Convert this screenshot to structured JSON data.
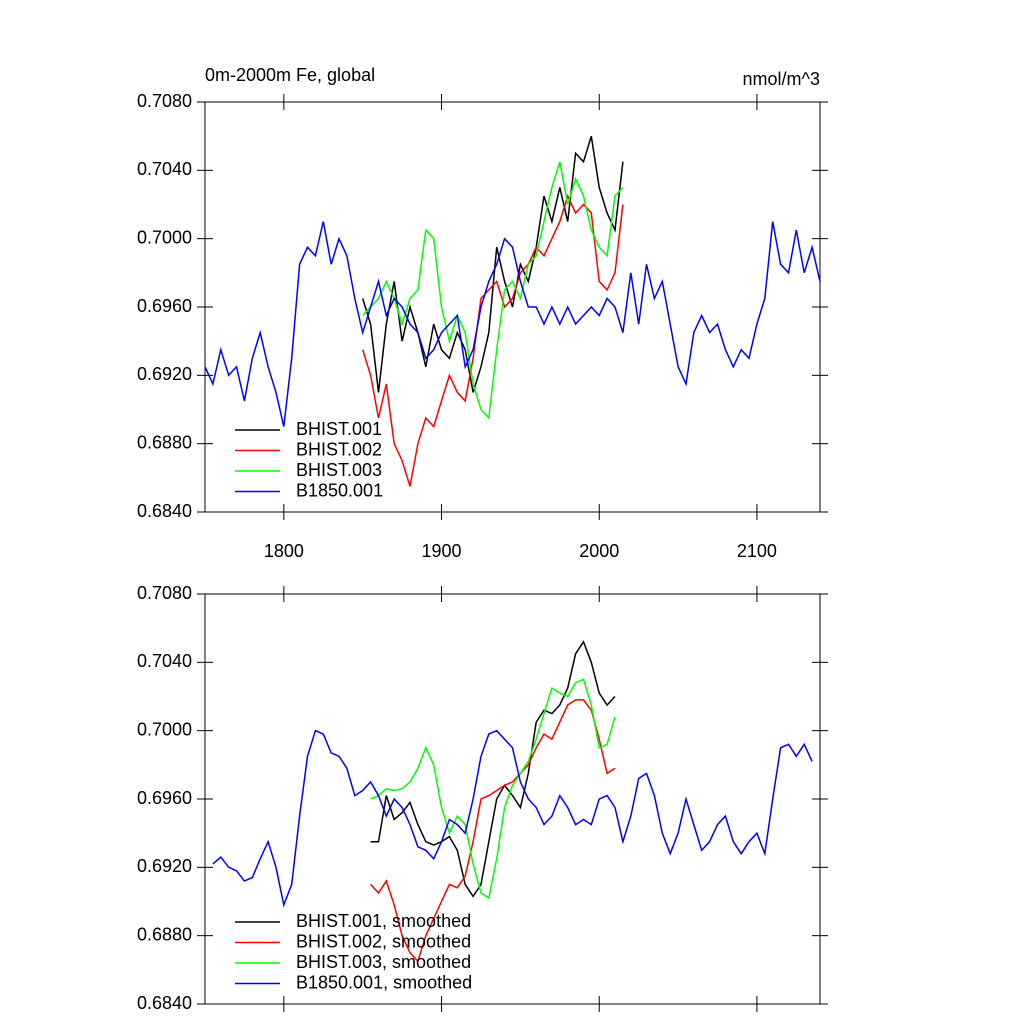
{
  "chart_data": [
    {
      "type": "line",
      "title": "0m-2000m Fe, global",
      "units_label": "nmol/m^3",
      "xlim": [
        1750,
        2140
      ],
      "xticks": [
        1800,
        1900,
        2000,
        2100
      ],
      "xtick_labels": true,
      "ylim": [
        0.684,
        0.708
      ],
      "yticks": [
        {
          "value": 0.684,
          "label": "0.6840"
        },
        {
          "value": 0.688,
          "label": "0.6880"
        },
        {
          "value": 0.692,
          "label": "0.6920"
        },
        {
          "value": 0.696,
          "label": "0.6960"
        },
        {
          "value": 0.7,
          "label": "0.7000"
        },
        {
          "value": 0.704,
          "label": "0.7040"
        },
        {
          "value": 0.708,
          "label": "0.7080"
        }
      ],
      "legend": "lower left",
      "series": [
        {
          "name": "BHIST.001",
          "color": "#000000",
          "x": [
            1850,
            1855,
            1860,
            1865,
            1870,
            1875,
            1880,
            1885,
            1890,
            1895,
            1900,
            1905,
            1910,
            1915,
            1920,
            1925,
            1930,
            1935,
            1940,
            1945,
            1950,
            1955,
            1960,
            1965,
            1970,
            1975,
            1980,
            1985,
            1990,
            1995,
            2000,
            2005,
            2010,
            2015
          ],
          "values": [
            0.6965,
            0.695,
            0.691,
            0.695,
            0.6975,
            0.694,
            0.696,
            0.6945,
            0.6925,
            0.695,
            0.6935,
            0.693,
            0.6945,
            0.6935,
            0.691,
            0.6925,
            0.6945,
            0.6995,
            0.6975,
            0.696,
            0.6985,
            0.6975,
            0.6995,
            0.7025,
            0.701,
            0.703,
            0.701,
            0.705,
            0.7045,
            0.706,
            0.703,
            0.7015,
            0.7005,
            0.7045
          ]
        },
        {
          "name": "BHIST.002",
          "color": "#ff0000",
          "x": [
            1850,
            1855,
            1860,
            1865,
            1870,
            1875,
            1880,
            1885,
            1890,
            1895,
            1900,
            1905,
            1910,
            1915,
            1920,
            1925,
            1930,
            1935,
            1940,
            1945,
            1950,
            1955,
            1960,
            1965,
            1970,
            1975,
            1980,
            1985,
            1990,
            1995,
            2000,
            2005,
            2010,
            2015
          ],
          "values": [
            0.6935,
            0.692,
            0.6895,
            0.6915,
            0.688,
            0.687,
            0.6855,
            0.688,
            0.6895,
            0.689,
            0.6905,
            0.692,
            0.691,
            0.6905,
            0.693,
            0.6965,
            0.697,
            0.6975,
            0.696,
            0.6965,
            0.698,
            0.6985,
            0.6995,
            0.699,
            0.7,
            0.701,
            0.7025,
            0.7015,
            0.702,
            0.7015,
            0.6975,
            0.697,
            0.698,
            0.702
          ]
        },
        {
          "name": "BHIST.003",
          "color": "#00ff00",
          "x": [
            1850,
            1855,
            1860,
            1865,
            1870,
            1875,
            1880,
            1885,
            1890,
            1895,
            1900,
            1905,
            1910,
            1915,
            1920,
            1925,
            1930,
            1935,
            1940,
            1945,
            1950,
            1955,
            1960,
            1965,
            1970,
            1975,
            1980,
            1985,
            1990,
            1995,
            2000,
            2005,
            2010,
            2015
          ],
          "values": [
            0.6955,
            0.696,
            0.6965,
            0.6975,
            0.6965,
            0.695,
            0.6965,
            0.697,
            0.7005,
            0.7,
            0.696,
            0.694,
            0.6955,
            0.6945,
            0.6915,
            0.69,
            0.6895,
            0.6935,
            0.697,
            0.6975,
            0.6965,
            0.6985,
            0.699,
            0.701,
            0.703,
            0.7045,
            0.702,
            0.7035,
            0.7025,
            0.7005,
            0.6995,
            0.699,
            0.7025,
            0.703
          ]
        },
        {
          "name": "B1850.001",
          "color": "#0000ff",
          "x": [
            1750,
            1755,
            1760,
            1765,
            1770,
            1775,
            1780,
            1785,
            1790,
            1795,
            1800,
            1805,
            1810,
            1815,
            1820,
            1825,
            1830,
            1835,
            1840,
            1845,
            1850,
            1855,
            1860,
            1865,
            1870,
            1875,
            1880,
            1885,
            1890,
            1895,
            1900,
            1905,
            1910,
            1915,
            1920,
            1925,
            1930,
            1935,
            1940,
            1945,
            1950,
            1955,
            1960,
            1965,
            1970,
            1975,
            1980,
            1985,
            1990,
            1995,
            2000,
            2005,
            2010,
            2015,
            2020,
            2025,
            2030,
            2035,
            2040,
            2045,
            2050,
            2055,
            2060,
            2065,
            2070,
            2075,
            2080,
            2085,
            2090,
            2095,
            2100,
            2105,
            2110,
            2115,
            2120,
            2125,
            2130,
            2135,
            2140
          ],
          "values": [
            0.6925,
            0.6915,
            0.6935,
            0.692,
            0.6925,
            0.6905,
            0.693,
            0.6945,
            0.6925,
            0.691,
            0.689,
            0.693,
            0.6985,
            0.6995,
            0.699,
            0.701,
            0.6985,
            0.7,
            0.699,
            0.6965,
            0.6945,
            0.696,
            0.6975,
            0.6955,
            0.6965,
            0.696,
            0.695,
            0.6945,
            0.693,
            0.6935,
            0.6945,
            0.695,
            0.6955,
            0.6925,
            0.6935,
            0.696,
            0.6975,
            0.6985,
            0.7,
            0.6995,
            0.6975,
            0.696,
            0.696,
            0.695,
            0.696,
            0.695,
            0.696,
            0.695,
            0.6955,
            0.696,
            0.6955,
            0.6965,
            0.696,
            0.6945,
            0.698,
            0.695,
            0.6985,
            0.6965,
            0.6975,
            0.695,
            0.6925,
            0.6915,
            0.6945,
            0.6955,
            0.6945,
            0.695,
            0.6935,
            0.6925,
            0.6935,
            0.693,
            0.695,
            0.6965,
            0.701,
            0.6985,
            0.698,
            0.7005,
            0.698,
            0.6995,
            0.6975
          ]
        }
      ]
    },
    {
      "type": "line",
      "xlim": [
        1750,
        2140
      ],
      "xticks": [
        1800,
        1900,
        2000,
        2100
      ],
      "xtick_labels": false,
      "ylim": [
        0.684,
        0.708
      ],
      "yticks": [
        {
          "value": 0.684,
          "label": "0.6840"
        },
        {
          "value": 0.688,
          "label": "0.6880"
        },
        {
          "value": 0.692,
          "label": "0.6920"
        },
        {
          "value": 0.696,
          "label": "0.6960"
        },
        {
          "value": 0.7,
          "label": "0.7000"
        },
        {
          "value": 0.704,
          "label": "0.7040"
        },
        {
          "value": 0.708,
          "label": "0.7080"
        }
      ],
      "legend": "lower left",
      "series": [
        {
          "name": "BHIST.001, smoothed",
          "color": "#000000",
          "x": [
            1855,
            1860,
            1865,
            1870,
            1875,
            1880,
            1885,
            1890,
            1895,
            1900,
            1905,
            1910,
            1915,
            1920,
            1925,
            1930,
            1935,
            1940,
            1945,
            1950,
            1955,
            1960,
            1965,
            1970,
            1975,
            1980,
            1985,
            1990,
            1995,
            2000,
            2005,
            2010
          ],
          "values": [
            0.6935,
            0.6935,
            0.6962,
            0.6948,
            0.6952,
            0.6958,
            0.6945,
            0.6935,
            0.6933,
            0.6935,
            0.6938,
            0.693,
            0.691,
            0.6903,
            0.691,
            0.6935,
            0.696,
            0.6968,
            0.6962,
            0.6955,
            0.6975,
            0.7005,
            0.7012,
            0.701,
            0.7015,
            0.7025,
            0.7045,
            0.7052,
            0.704,
            0.7022,
            0.7015,
            0.702
          ]
        },
        {
          "name": "BHIST.002, smoothed",
          "color": "#ff0000",
          "x": [
            1855,
            1860,
            1865,
            1870,
            1875,
            1880,
            1885,
            1890,
            1895,
            1900,
            1905,
            1910,
            1915,
            1920,
            1925,
            1930,
            1935,
            1940,
            1945,
            1950,
            1955,
            1960,
            1965,
            1970,
            1975,
            1980,
            1985,
            1990,
            1995,
            2000,
            2005,
            2010
          ],
          "values": [
            0.691,
            0.6905,
            0.6912,
            0.6898,
            0.688,
            0.687,
            0.6865,
            0.688,
            0.689,
            0.69,
            0.691,
            0.6908,
            0.6915,
            0.6935,
            0.696,
            0.6962,
            0.6965,
            0.6968,
            0.697,
            0.6975,
            0.698,
            0.699,
            0.6998,
            0.6995,
            0.7005,
            0.7015,
            0.7018,
            0.7018,
            0.7012,
            0.6995,
            0.6975,
            0.6978
          ]
        },
        {
          "name": "BHIST.003, smoothed",
          "color": "#00ff00",
          "x": [
            1855,
            1860,
            1865,
            1870,
            1875,
            1880,
            1885,
            1890,
            1895,
            1900,
            1905,
            1910,
            1915,
            1920,
            1925,
            1930,
            1935,
            1940,
            1945,
            1950,
            1955,
            1960,
            1965,
            1970,
            1975,
            1980,
            1985,
            1990,
            1995,
            2000,
            2005,
            2010
          ],
          "values": [
            0.696,
            0.6962,
            0.6966,
            0.6965,
            0.6966,
            0.697,
            0.6978,
            0.699,
            0.698,
            0.6955,
            0.694,
            0.695,
            0.6945,
            0.6922,
            0.6905,
            0.6902,
            0.6925,
            0.6955,
            0.6968,
            0.6975,
            0.6982,
            0.6995,
            0.701,
            0.7025,
            0.7022,
            0.702,
            0.7028,
            0.703,
            0.7015,
            0.699,
            0.6992,
            0.7008
          ]
        },
        {
          "name": "B1850.001, smoothed",
          "color": "#0000ff",
          "x": [
            1755,
            1760,
            1765,
            1770,
            1775,
            1780,
            1785,
            1790,
            1795,
            1800,
            1805,
            1810,
            1815,
            1820,
            1825,
            1830,
            1835,
            1840,
            1845,
            1850,
            1855,
            1860,
            1865,
            1870,
            1875,
            1880,
            1885,
            1890,
            1895,
            1900,
            1905,
            1910,
            1915,
            1920,
            1925,
            1930,
            1935,
            1940,
            1945,
            1950,
            1955,
            1960,
            1965,
            1970,
            1975,
            1980,
            1985,
            1990,
            1995,
            2000,
            2005,
            2010,
            2015,
            2020,
            2025,
            2030,
            2035,
            2040,
            2045,
            2050,
            2055,
            2060,
            2065,
            2070,
            2075,
            2080,
            2085,
            2090,
            2095,
            2100,
            2105,
            2110,
            2115,
            2120,
            2125,
            2130,
            2135
          ],
          "values": [
            0.6922,
            0.6926,
            0.692,
            0.6918,
            0.6912,
            0.6914,
            0.6925,
            0.6935,
            0.692,
            0.6898,
            0.691,
            0.695,
            0.6985,
            0.7,
            0.6998,
            0.6987,
            0.6985,
            0.6978,
            0.6962,
            0.6965,
            0.697,
            0.6962,
            0.695,
            0.696,
            0.6955,
            0.6945,
            0.6932,
            0.693,
            0.6925,
            0.6935,
            0.6948,
            0.6945,
            0.694,
            0.696,
            0.6985,
            0.6998,
            0.7,
            0.6995,
            0.699,
            0.697,
            0.696,
            0.6955,
            0.6945,
            0.695,
            0.6962,
            0.6955,
            0.6945,
            0.6948,
            0.6945,
            0.696,
            0.6962,
            0.6955,
            0.6935,
            0.695,
            0.6972,
            0.6975,
            0.6962,
            0.694,
            0.6928,
            0.694,
            0.696,
            0.6945,
            0.693,
            0.6935,
            0.6945,
            0.695,
            0.6935,
            0.6928,
            0.6935,
            0.694,
            0.6928,
            0.696,
            0.699,
            0.6992,
            0.6985,
            0.6992,
            0.6982
          ]
        }
      ]
    }
  ]
}
